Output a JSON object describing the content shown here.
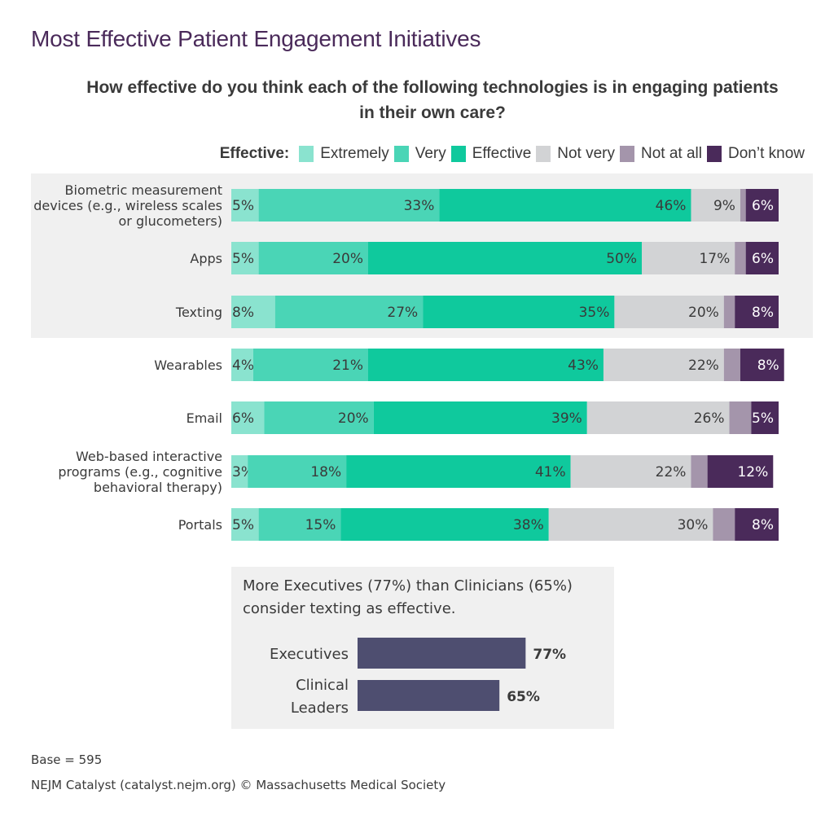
{
  "title": "Most Effective Patient Engagement Initiatives",
  "subtitle": "How effective do you think each of the following technologies is in engaging patients in their own care?",
  "legend": {
    "lead": "Effective:",
    "items": [
      {
        "label": "Extremely",
        "color": "#8ae3cf"
      },
      {
        "label": "Very",
        "color": "#4ad5b6"
      },
      {
        "label": "Effective",
        "color": "#0fc99d"
      },
      {
        "label": "Not very",
        "color": "#d2d3d5"
      },
      {
        "label": "Not at all",
        "color": "#a495ab"
      },
      {
        "label": "Don’t know",
        "color": "#4a2a5a"
      }
    ]
  },
  "chart_data": [
    {
      "type": "bar",
      "orientation": "horizontal-stacked",
      "title": "How effective do you think each of the following technologies is in engaging patients in their own care?",
      "legend_position": "top-right",
      "series_names": [
        "Extremely",
        "Very",
        "Effective",
        "Not very",
        "Not at all",
        "Don’t know"
      ],
      "categories": [
        [
          "Biometric measurement",
          "devices (e.g., wireless scales",
          "or glucometers)"
        ],
        [
          "Apps"
        ],
        [
          "Texting"
        ],
        [
          "Wearables"
        ],
        [
          "Email"
        ],
        [
          "Web-based interactive",
          "programs (e.g., cognitive",
          "behavioral therapy)"
        ],
        [
          "Portals"
        ]
      ],
      "values": [
        [
          5,
          33,
          46,
          9,
          1,
          6
        ],
        [
          5,
          20,
          50,
          17,
          2,
          6
        ],
        [
          8,
          27,
          35,
          20,
          2,
          8
        ],
        [
          4,
          21,
          43,
          22,
          3,
          8
        ],
        [
          6,
          20,
          39,
          26,
          4,
          5
        ],
        [
          3,
          18,
          41,
          22,
          3,
          12
        ],
        [
          5,
          15,
          38,
          30,
          4,
          8
        ]
      ],
      "labels_shown": [
        [
          "5%",
          "33%",
          "46%",
          "9%",
          "",
          "6%"
        ],
        [
          "5%",
          "20%",
          "50%",
          "17%",
          "",
          "6%"
        ],
        [
          "8%",
          "27%",
          "35%",
          "20%",
          "",
          "8%"
        ],
        [
          "4%",
          "21%",
          "43%",
          "22%",
          "",
          "8%"
        ],
        [
          "6%",
          "20%",
          "39%",
          "26%",
          "",
          "5%"
        ],
        [
          "3%",
          "18%",
          "41%",
          "22%",
          "",
          "12%"
        ],
        [
          "5%",
          "15%",
          "38%",
          "30%",
          "",
          "8%"
        ]
      ],
      "highlighted_rows": [
        0,
        1,
        2
      ],
      "xlim": [
        0,
        100
      ]
    },
    {
      "type": "bar",
      "orientation": "horizontal",
      "title": "More Executives (77%) than Clinicians (65%) consider texting as effective.",
      "categories": [
        [
          "Executives"
        ],
        [
          "Clinical",
          "Leaders"
        ]
      ],
      "values": [
        77,
        65
      ],
      "labels_shown": [
        "77%",
        "65%"
      ],
      "color": "#4e4e70"
    }
  ],
  "inset": {
    "text_line1": "More Executives (77%) than Clinicians (65%)",
    "text_line2": "consider texting as effective."
  },
  "footer": {
    "base": "Base = 595",
    "source": "NEJM Catalyst (catalyst.nejm.org) © Massachusetts Medical Society"
  }
}
